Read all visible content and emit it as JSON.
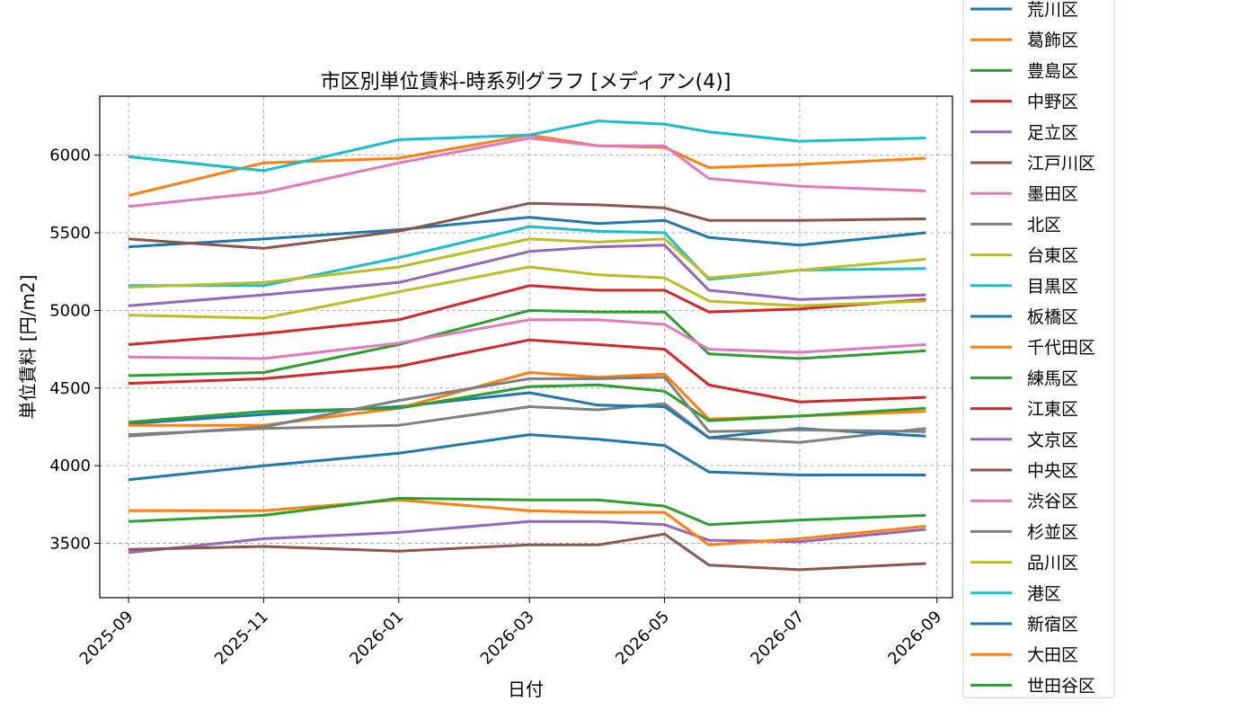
{
  "chart_data": {
    "type": "line",
    "title": "市区別単位賃料-時系列グラフ [メディアン(4)]",
    "xlabel": "日付",
    "ylabel": "単位賃料 [円/m2]",
    "x_ticks": [
      "2025-09",
      "2025-11",
      "2026-01",
      "2026-03",
      "2026-05",
      "2026-07",
      "2026-09"
    ],
    "y_ticks": [
      3500,
      4000,
      4500,
      5000,
      5500,
      6000
    ],
    "xlim": [
      "2025-08-19",
      "2026-09-08"
    ],
    "ylim": [
      3150,
      6380
    ],
    "grid": true,
    "legend_position": "right-outside",
    "x": [
      "2025-09-01",
      "2025-11-01",
      "2026-01-01",
      "2026-03-01",
      "2026-04-01",
      "2026-05-01",
      "2026-05-21",
      "2026-07-01",
      "2026-08-27"
    ],
    "series": [
      {
        "name": "荒川区",
        "color": "#1f77b4",
        "values": [
          5410,
          5460,
          5520,
          5600,
          5560,
          5580,
          5470,
          5420,
          5500
        ]
      },
      {
        "name": "葛飾区",
        "color": "#ff7f0e",
        "values": [
          5740,
          5950,
          5980,
          6130,
          6060,
          6050,
          5920,
          5940,
          5980
        ]
      },
      {
        "name": "豊島区",
        "color": "#2ca02c",
        "values": [
          4580,
          4600,
          4780,
          5000,
          4990,
          4990,
          4720,
          4690,
          4740
        ]
      },
      {
        "name": "中野区",
        "color": "#d62728",
        "values": [
          4780,
          4850,
          4940,
          5160,
          5130,
          5130,
          4990,
          5010,
          5070
        ]
      },
      {
        "name": "足立区",
        "color": "#9467bd",
        "values": [
          5030,
          5100,
          5180,
          5380,
          5410,
          5420,
          5130,
          5070,
          5100
        ]
      },
      {
        "name": "江戸川区",
        "color": "#8c564b",
        "values": [
          5460,
          5400,
          5510,
          5690,
          5680,
          5660,
          5580,
          5580,
          5590
        ]
      },
      {
        "name": "墨田区",
        "color": "#e377c2",
        "values": [
          5670,
          5760,
          5950,
          6110,
          6060,
          6060,
          5850,
          5800,
          5770
        ]
      },
      {
        "name": "北区",
        "color": "#7f7f7f",
        "values": [
          4200,
          4240,
          4260,
          4380,
          4360,
          4400,
          4180,
          4150,
          4240
        ]
      },
      {
        "name": "台東区",
        "color": "#bcbd22",
        "values": [
          4970,
          4950,
          5120,
          5280,
          5230,
          5210,
          5060,
          5030,
          5060
        ]
      },
      {
        "name": "目黒区",
        "color": "#17becf",
        "values": [
          5160,
          5160,
          5340,
          5540,
          5510,
          5500,
          5200,
          5260,
          5270
        ]
      },
      {
        "name": "板橋区",
        "color": "#1f77b4",
        "values": [
          4270,
          4330,
          4380,
          4470,
          4390,
          4380,
          4180,
          4240,
          4190
        ]
      },
      {
        "name": "千代田区",
        "color": "#ff7f0e",
        "values": [
          4260,
          4260,
          4370,
          4600,
          4570,
          4590,
          4300,
          4320,
          4350
        ]
      },
      {
        "name": "練馬区",
        "color": "#2ca02c",
        "values": [
          4280,
          4350,
          4370,
          4510,
          4520,
          4480,
          4290,
          4320,
          4370
        ]
      },
      {
        "name": "江東区",
        "color": "#d62728",
        "values": [
          4530,
          4560,
          4640,
          4810,
          4780,
          4750,
          4520,
          4410,
          4440
        ]
      },
      {
        "name": "文京区",
        "color": "#9467bd",
        "values": [
          3440,
          3530,
          3570,
          3640,
          3640,
          3620,
          3520,
          3510,
          3590
        ]
      },
      {
        "name": "中央区",
        "color": "#8c564b",
        "values": [
          3460,
          3480,
          3450,
          3490,
          3490,
          3560,
          3360,
          3330,
          3370
        ]
      },
      {
        "name": "渋谷区",
        "color": "#e377c2",
        "values": [
          4700,
          4690,
          4790,
          4940,
          4940,
          4910,
          4750,
          4730,
          4780
        ]
      },
      {
        "name": "杉並区",
        "color": "#7f7f7f",
        "values": [
          4190,
          4250,
          4420,
          4560,
          4560,
          4570,
          4220,
          4230,
          4220
        ]
      },
      {
        "name": "品川区",
        "color": "#bcbd22",
        "values": [
          5150,
          5180,
          5280,
          5460,
          5440,
          5460,
          5210,
          5260,
          5330
        ]
      },
      {
        "name": "港区",
        "color": "#17becf",
        "values": [
          5990,
          5900,
          6100,
          6130,
          6220,
          6200,
          6150,
          6090,
          6110
        ]
      },
      {
        "name": "新宿区",
        "color": "#1f77b4",
        "values": [
          3910,
          4000,
          4080,
          4200,
          4170,
          4130,
          3960,
          3940,
          3940
        ]
      },
      {
        "name": "大田区",
        "color": "#ff7f0e",
        "values": [
          3710,
          3710,
          3780,
          3710,
          3700,
          3700,
          3490,
          3530,
          3610
        ]
      },
      {
        "name": "世田谷区",
        "color": "#2ca02c",
        "values": [
          3640,
          3680,
          3790,
          3780,
          3780,
          3740,
          3620,
          3650,
          3680
        ]
      }
    ]
  }
}
